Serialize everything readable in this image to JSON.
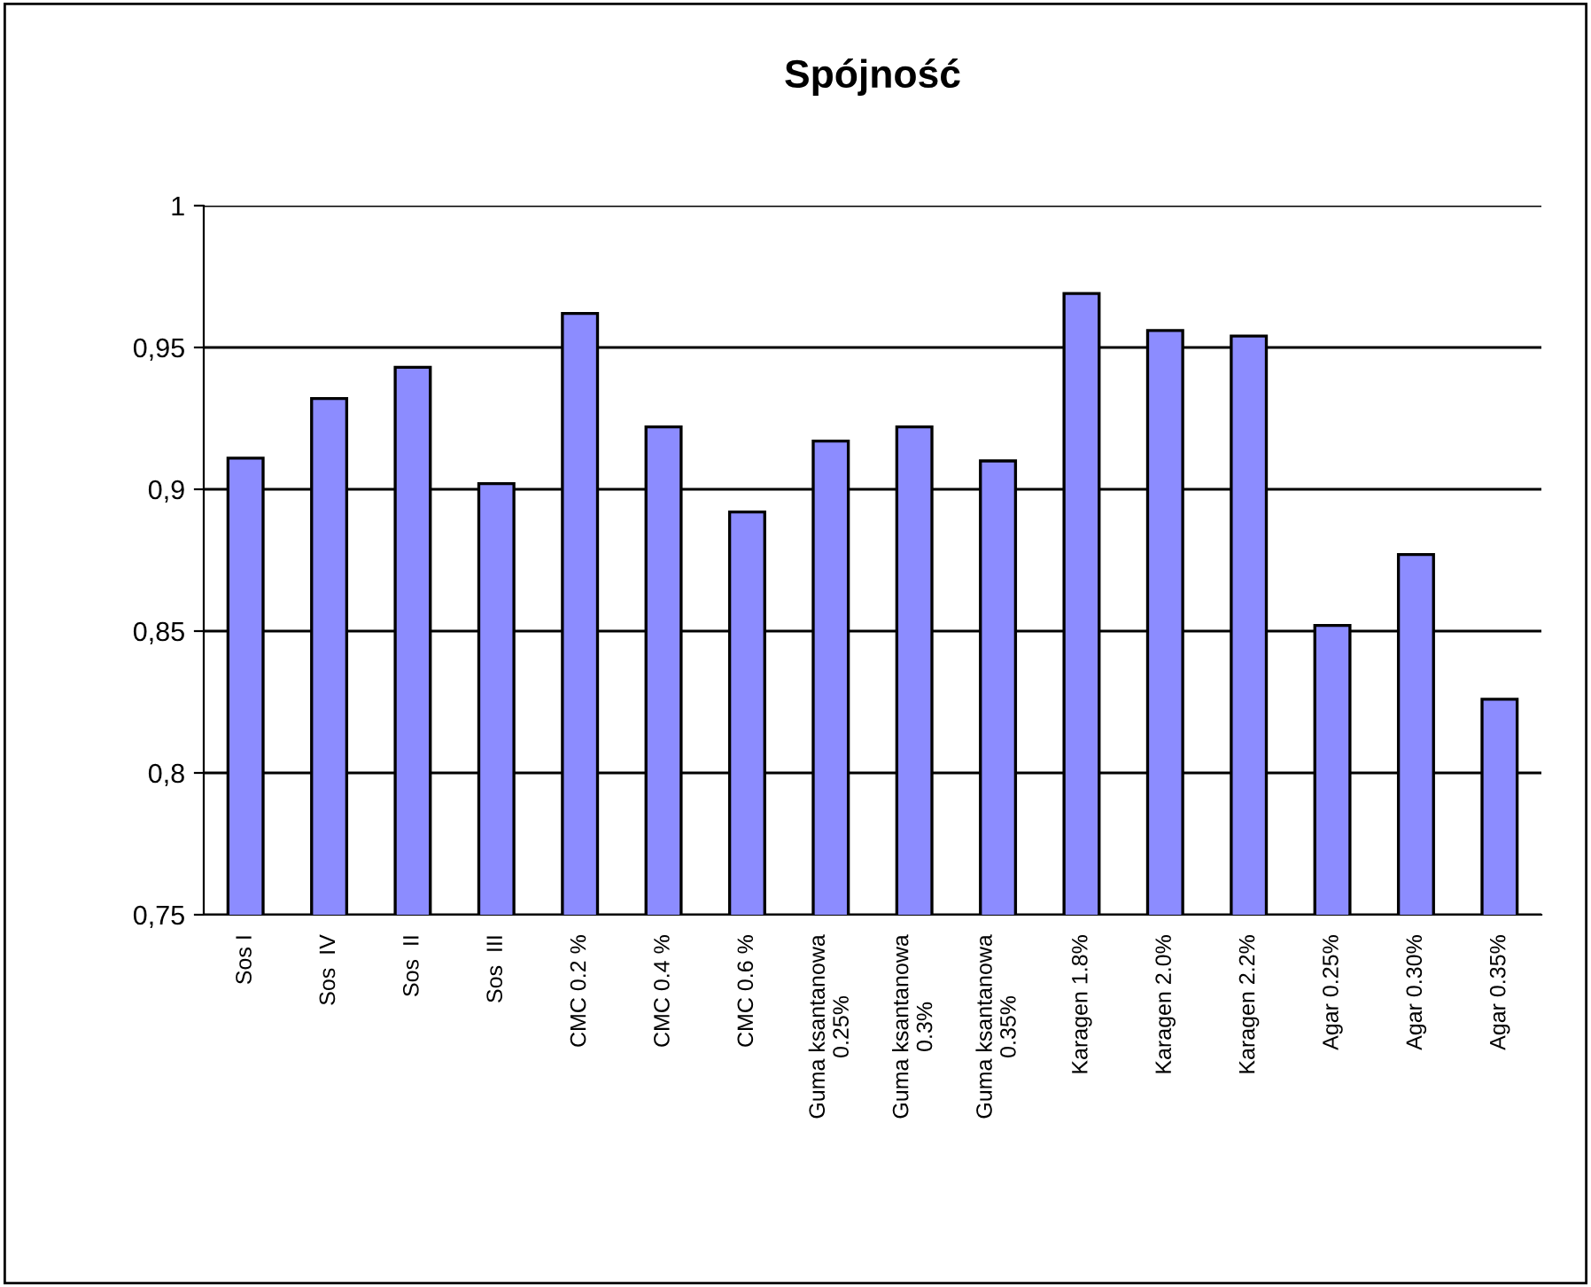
{
  "chart_data": {
    "type": "bar",
    "title": "Spójność",
    "categories": [
      "Sos I",
      "Sos  IV",
      "Sos  II",
      "Sos  III",
      "CMC 0.2 %",
      "CMC 0.4 %",
      "CMC 0.6 %",
      "Guma ksantanowa\n0.25%",
      "Guma ksantanowa\n0.3%",
      "Guma ksantanowa\n0.35%",
      "Karagen 1.8%",
      "Karagen 2.0%",
      "Karagen 2.2%",
      "Agar 0.25%",
      "Agar 0.30%",
      "Agar 0.35%"
    ],
    "values": [
      0.911,
      0.932,
      0.943,
      0.902,
      0.962,
      0.922,
      0.892,
      0.917,
      0.922,
      0.91,
      0.969,
      0.956,
      0.954,
      0.852,
      0.877,
      0.826
    ],
    "color": "#8c8cff",
    "ylim": [
      0.75,
      1
    ],
    "yticks": [
      {
        "value": 0.75,
        "label": "0,75"
      },
      {
        "value": 0.8,
        "label": "0,8"
      },
      {
        "value": 0.85,
        "label": "0,85"
      },
      {
        "value": 0.9,
        "label": "0,9"
      },
      {
        "value": 0.95,
        "label": "0,95"
      },
      1
    ],
    "grid": "y"
  }
}
